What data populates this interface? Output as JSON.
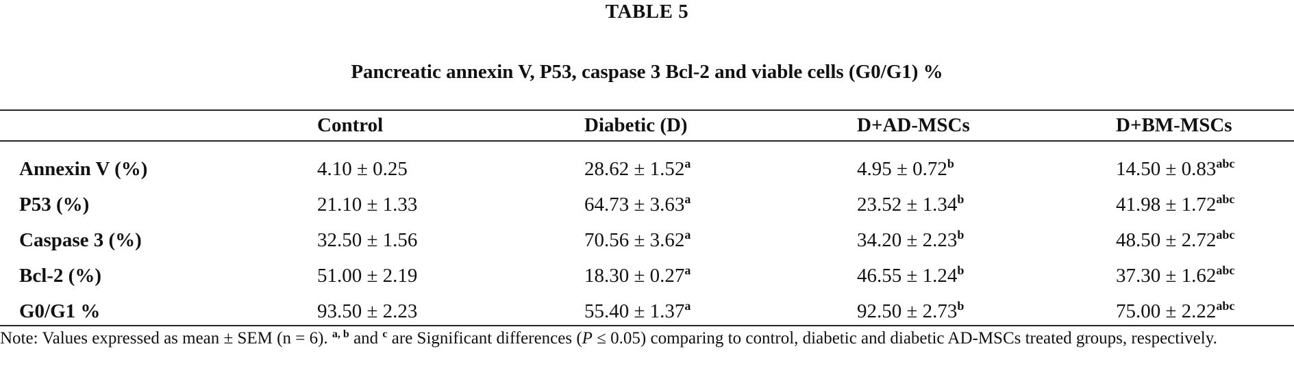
{
  "table_label": "TABLE 5",
  "title": "Pancreatic annexin V, P53, caspase 3 Bcl-2 and viable cells (G0/G1) %",
  "columns": [
    "",
    "Control",
    "Diabetic (D)",
    "D+AD-MSCs",
    "D+BM-MSCs"
  ],
  "rows": [
    {
      "label": "Annexin V (%)",
      "cells": [
        {
          "value": "4.10 ± 0.25",
          "sup": ""
        },
        {
          "value": "28.62 ± 1.52",
          "sup": "a"
        },
        {
          "value": "4.95 ± 0.72",
          "sup": "b"
        },
        {
          "value": "14.50 ± 0.83",
          "sup": "abc"
        }
      ]
    },
    {
      "label": "P53 (%)",
      "cells": [
        {
          "value": "21.10 ± 1.33",
          "sup": ""
        },
        {
          "value": "64.73 ± 3.63",
          "sup": "a"
        },
        {
          "value": "23.52 ± 1.34",
          "sup": "b"
        },
        {
          "value": "41.98 ± 1.72",
          "sup": "abc"
        }
      ]
    },
    {
      "label": "Caspase 3 (%)",
      "cells": [
        {
          "value": "32.50 ± 1.56",
          "sup": ""
        },
        {
          "value": "70.56 ± 3.62",
          "sup": "a"
        },
        {
          "value": "34.20 ± 2.23",
          "sup": "b"
        },
        {
          "value": "48.50 ± 2.72",
          "sup": "abc"
        }
      ]
    },
    {
      "label": "Bcl-2 (%)",
      "cells": [
        {
          "value": "51.00 ± 2.19",
          "sup": ""
        },
        {
          "value": "18.30 ± 0.27",
          "sup": "a"
        },
        {
          "value": "46.55 ± 1.24",
          "sup": "b"
        },
        {
          "value": "37.30 ± 1.62",
          "sup": "abc"
        }
      ]
    },
    {
      "label": "G0/G1 %",
      "cells": [
        {
          "value": "93.50 ± 2.23",
          "sup": ""
        },
        {
          "value": "55.40 ± 1.37",
          "sup": "a"
        },
        {
          "value": "92.50 ± 2.73",
          "sup": "b"
        },
        {
          "value": "75.00 ± 2.22",
          "sup": "abc"
        }
      ]
    }
  ],
  "note": {
    "prefix": "Note: Values expressed as mean ± SEM (n = 6). ",
    "sup_ab": "a, b",
    "and": " and ",
    "sup_c": "c",
    "middle": " are Significant differences (",
    "p_italic": "P",
    "suffix": " ≤ 0.05) comparing to control, diabetic and diabetic AD-MSCs treated groups, respectively."
  }
}
